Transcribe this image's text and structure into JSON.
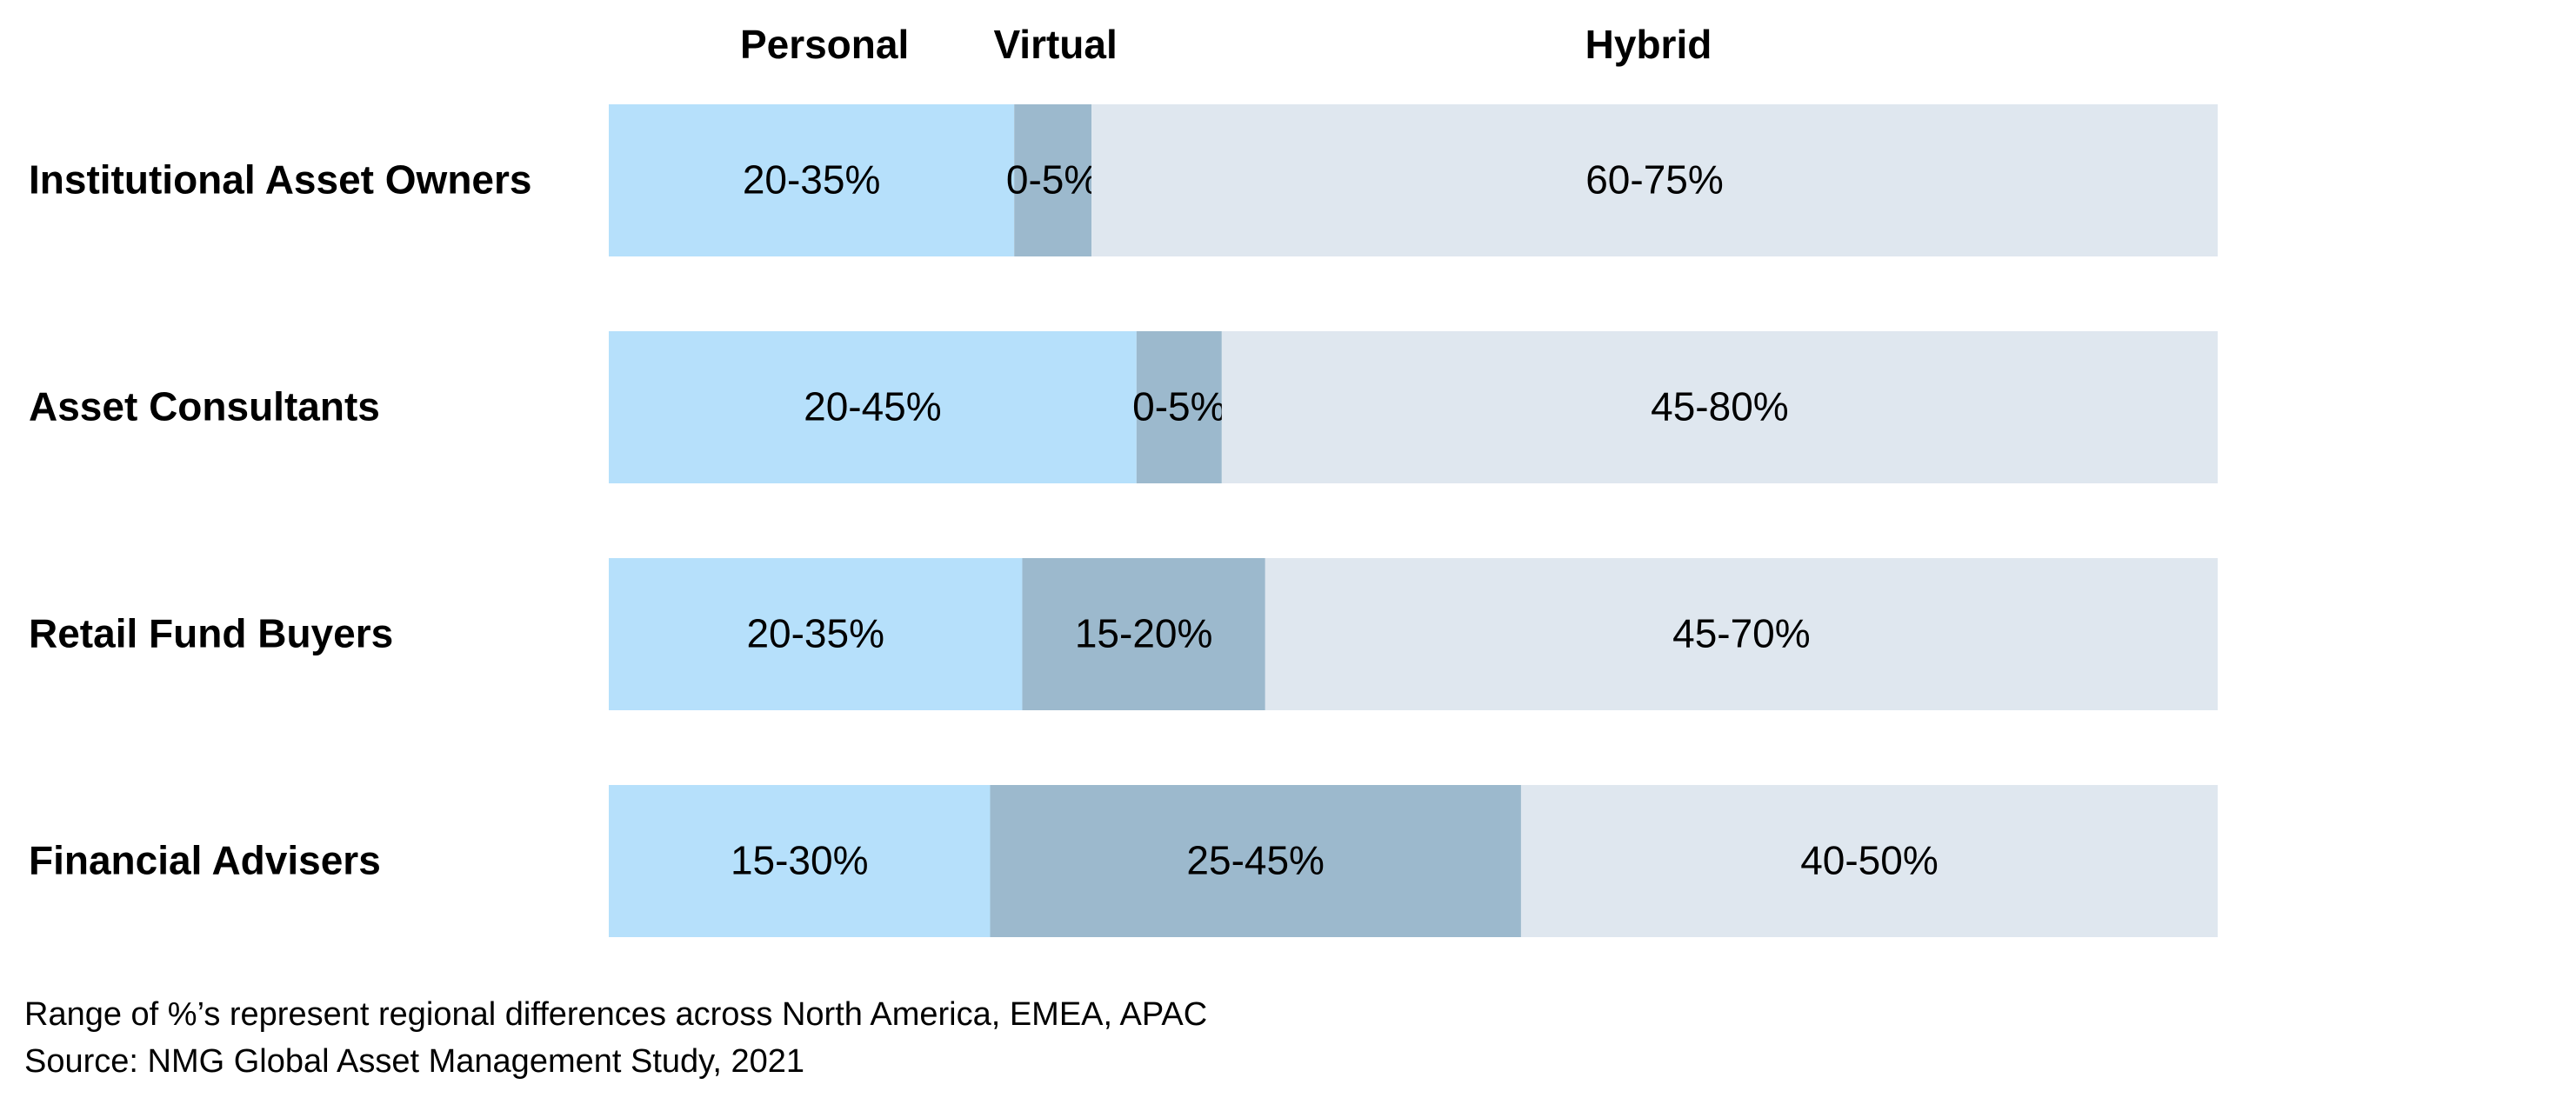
{
  "chart_data": {
    "type": "bar",
    "orientation": "horizontal",
    "stacked": true,
    "headers": [
      "Personal",
      "Virtual",
      "Hybrid"
    ],
    "series": [
      {
        "name": "Personal",
        "color": "#b6e0fb"
      },
      {
        "name": "Virtual",
        "color": "#9cb9cd"
      },
      {
        "name": "Hybrid",
        "color": "#dfe7ef"
      }
    ],
    "categories": [
      "Institutional Asset Owners",
      "Asset Consultants",
      "Retail Fund Buyers",
      "Financial Advisers"
    ],
    "rows": [
      {
        "label": "Institutional Asset Owners",
        "values": [
          25.2,
          4.8,
          70.0
        ],
        "labels": [
          "20-35%",
          "0-5%",
          "60-75%"
        ]
      },
      {
        "label": "Asset Consultants",
        "values": [
          32.8,
          5.3,
          61.9
        ],
        "labels": [
          "20-45%",
          "0-5%",
          "45-80%"
        ]
      },
      {
        "label": "Retail Fund Buyers",
        "values": [
          25.7,
          15.1,
          59.2
        ],
        "labels": [
          "20-35%",
          "15-20%",
          "45-70%"
        ]
      },
      {
        "label": "Financial Advisers",
        "values": [
          23.7,
          33.0,
          43.3
        ],
        "labels": [
          "15-30%",
          "25-45%",
          "40-50%"
        ]
      }
    ],
    "xlim": [
      0,
      100
    ],
    "grid": false,
    "legend": "none"
  },
  "footnotes": [
    "Range of %’s represent regional differences across North America, EMEA, APAC",
    "Source: NMG Global Asset Management Study, 2021"
  ]
}
